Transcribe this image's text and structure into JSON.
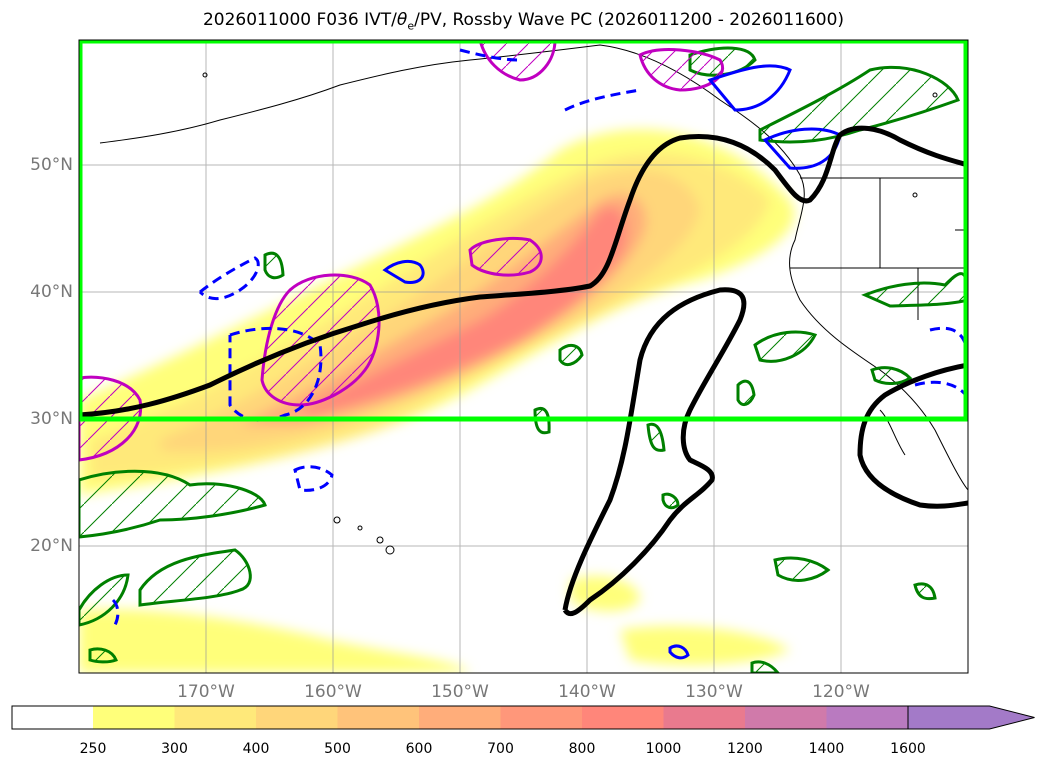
{
  "title": "2026011000 F036 IVT/θe/PV, Rossby Wave PC (2026011200 - 2026011600)",
  "title_prefix": "2026011000 F036 IVT/",
  "title_theta": "θ",
  "title_sub": "e",
  "title_suffix": "/PV, Rossby Wave PC (2026011200 - 2026011600)",
  "lat_labels": [
    "50°N",
    "40°N",
    "30°N",
    "20°N"
  ],
  "lon_labels": [
    "170°W",
    "160°W",
    "150°W",
    "140°W",
    "130°W",
    "120°W"
  ],
  "colorbar": {
    "levels": [
      "250",
      "300",
      "400",
      "500",
      "600",
      "700",
      "800",
      "1000",
      "1200",
      "1400",
      "1600"
    ],
    "colors": [
      "#ffffff",
      "#ffff7a",
      "#ffe97a",
      "#ffd67a",
      "#ffc37a",
      "#ffad7a",
      "#ff977a",
      "#ff867a",
      "#e97a8e",
      "#d07aaa",
      "#b97ac0",
      "#a37ac8"
    ]
  },
  "colors": {
    "box": "#00ff00",
    "ridge_contour": "#000000",
    "pv_positive": "#008000",
    "pv_negative": "#0000ff",
    "magenta": "#c000c0"
  }
}
